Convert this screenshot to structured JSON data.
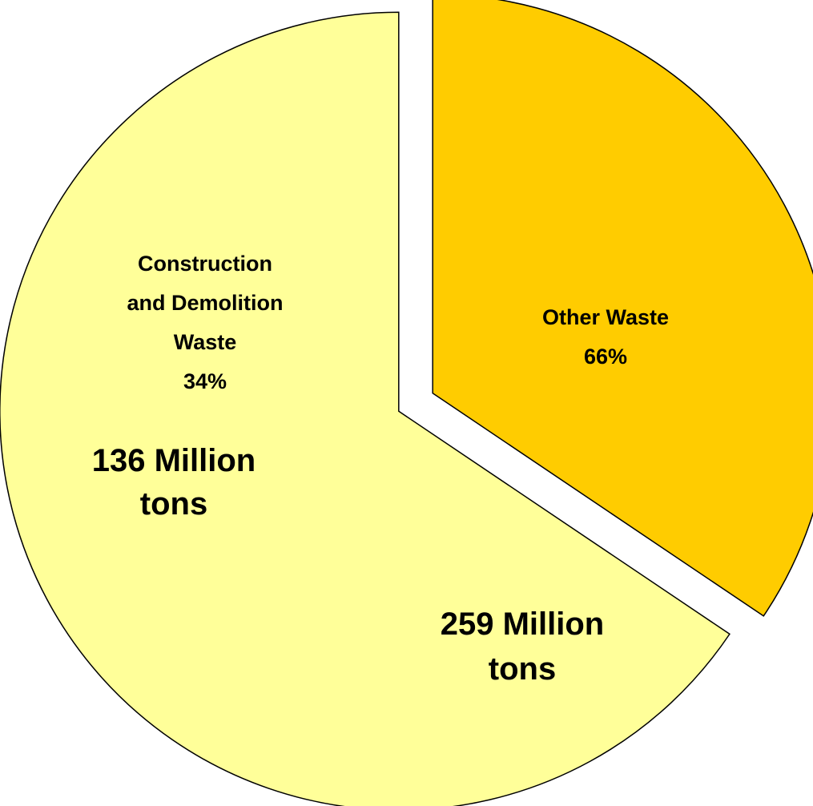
{
  "chart_data": {
    "type": "pie",
    "series": [
      {
        "name": "Construction and Demolition Waste",
        "label_lines": [
          "Construction",
          "and Demolition",
          "Waste"
        ],
        "percent_label": "34%",
        "value": 136,
        "percent": 34,
        "amount_lines": [
          "136 Million",
          "tons"
        ],
        "color": "#ffcc00",
        "exploded": true
      },
      {
        "name": "Other Waste",
        "label_lines": [
          "Other Waste"
        ],
        "percent_label": "66%",
        "value": 259,
        "percent": 66,
        "amount_lines": [
          "259 Million",
          "tons"
        ],
        "color": "#ffff99",
        "exploded": true
      }
    ],
    "unit": "Million tons",
    "legend": "none",
    "start_angle_deg": 0,
    "direction": "clockwise"
  }
}
